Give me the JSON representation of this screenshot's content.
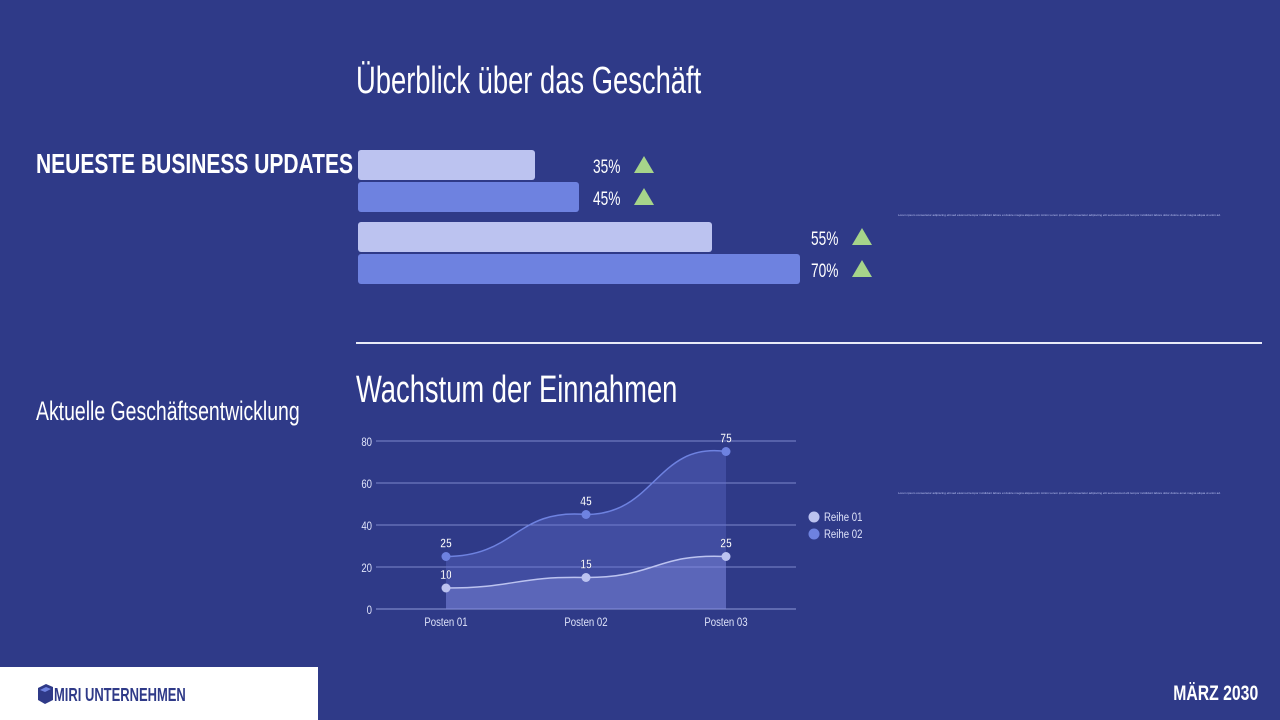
{
  "left": {
    "heading": "NEUESTE BUSINESS UPDATES",
    "subheading": "Aktuelle Geschäftsentwicklung"
  },
  "overview": {
    "title": "Überblick über das Geschäft",
    "bars": [
      {
        "value": 35,
        "label": "35%",
        "trend": "up-triangle-icon"
      },
      {
        "value": 45,
        "label": "45%",
        "trend": "up-triangle-icon"
      },
      {
        "value": 55,
        "label": "55%",
        "trend": "up-triangle-icon"
      },
      {
        "value": 70,
        "label": "70%",
        "trend": "up-triangle-icon"
      }
    ],
    "note": "Lorem ipsum consectetur adipiscing elit sed eiusmod tempor incididunt labore et dolore magna aliqua enim minim Lorem ipsum elit consectetur adipiscing elit sed eiusmod elit tempor incididunt labore dolor dolore amet magna aliqua ut enim ad."
  },
  "growth": {
    "title": "Wachstum der Einnahmen",
    "note": "Lorem ipsum consectetur adipiscing elit sed eiusmod tempor incididunt labore et dolore magna aliqua enim minim Lorem ipsum elit consectetur adipiscing elit sed eiusmod elit tempor incididunt labore dolor dolore amet magna aliqua ut enim ad."
  },
  "chart_data": {
    "type": "area",
    "categories": [
      "Posten 01",
      "Posten 02",
      "Posten 03"
    ],
    "series": [
      {
        "name": "Reihe 01",
        "values": [
          10,
          15,
          25
        ],
        "color": "#bcc3f0"
      },
      {
        "name": "Reihe 02",
        "values": [
          25,
          45,
          75
        ],
        "color": "#6e82e0"
      }
    ],
    "yticks": [
      0,
      20,
      40,
      60,
      80
    ],
    "ylim": [
      0,
      80
    ],
    "grid": true,
    "legend": "right"
  },
  "footer": {
    "logo_text": "MIRI UNTERNEHMEN",
    "date": "MÄRZ 2030"
  },
  "colors": {
    "background": "#2f3a88",
    "accent_light": "#bcc3f0",
    "accent_dark": "#6e82e0",
    "trend_up": "#a6d48a"
  }
}
